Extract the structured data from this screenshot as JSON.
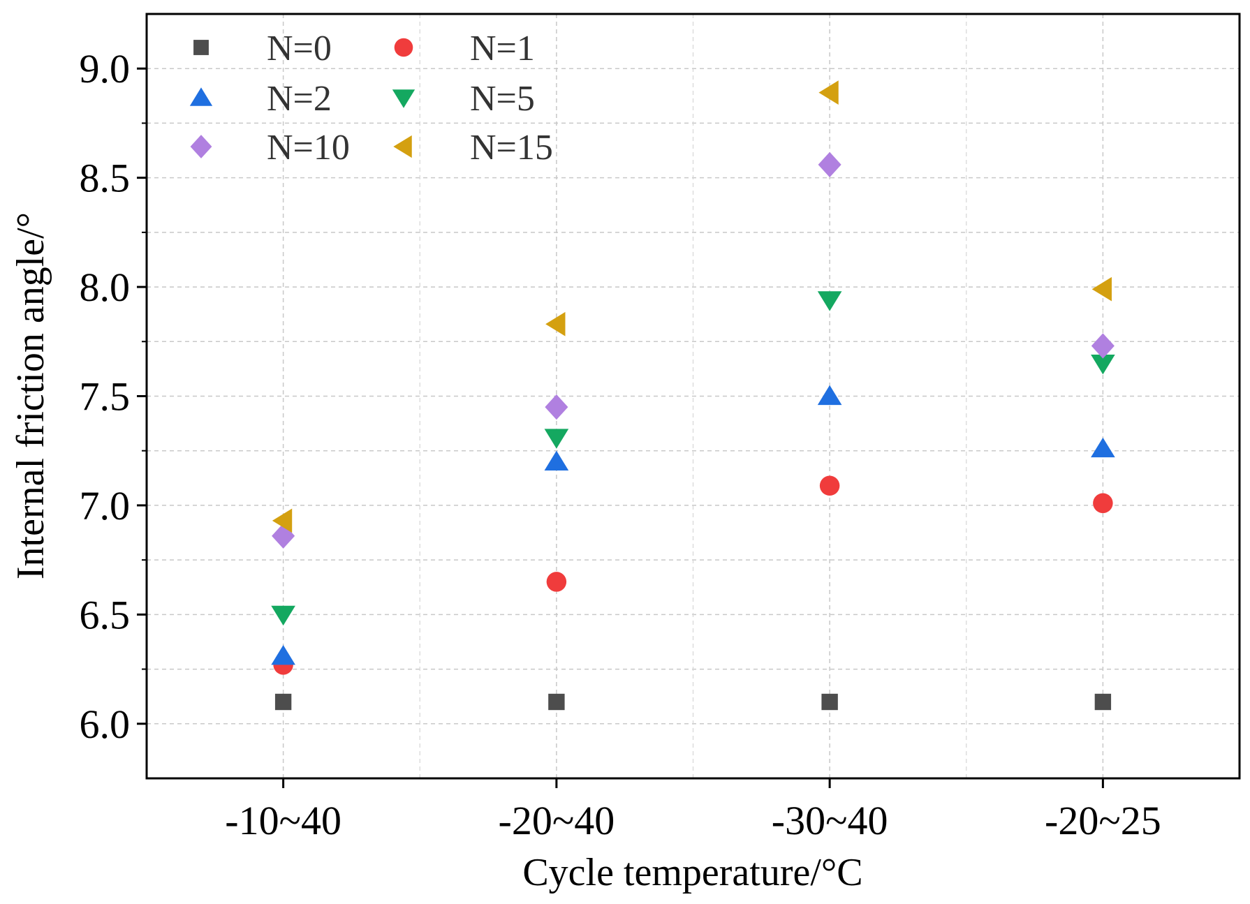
{
  "chart_data": {
    "type": "scatter",
    "title": "",
    "xlabel": "Cycle temperature/°C",
    "ylabel": "Internal friction angle/°",
    "categories": [
      "-10~40",
      "-20~40",
      "-30~40",
      "-20~25"
    ],
    "ylim": [
      5.75,
      9.25
    ],
    "yticks": [
      "6.0",
      "6.5",
      "7.0",
      "7.5",
      "8.0",
      "8.5",
      "9.0"
    ],
    "grid": true,
    "legend_position": "top-left",
    "series": [
      {
        "name": "N=0",
        "marker": "square",
        "color": "#4d4d4d",
        "values": [
          6.1,
          6.1,
          6.1,
          6.1
        ]
      },
      {
        "name": "N=1",
        "marker": "circle",
        "color": "#f03c3c",
        "values": [
          6.27,
          6.65,
          7.09,
          7.01
        ]
      },
      {
        "name": "N=2",
        "marker": "triangle-up",
        "color": "#1f6fe0",
        "values": [
          6.31,
          7.2,
          7.5,
          7.26
        ]
      },
      {
        "name": "N=5",
        "marker": "triangle-down",
        "color": "#14a860",
        "values": [
          6.5,
          7.31,
          7.94,
          7.65
        ]
      },
      {
        "name": "N=10",
        "marker": "diamond",
        "color": "#b080e0",
        "values": [
          6.86,
          7.45,
          8.56,
          7.73
        ]
      },
      {
        "name": "N=15",
        "marker": "triangle-left",
        "color": "#d4a010",
        "values": [
          6.93,
          7.83,
          8.89,
          7.99
        ]
      }
    ]
  }
}
